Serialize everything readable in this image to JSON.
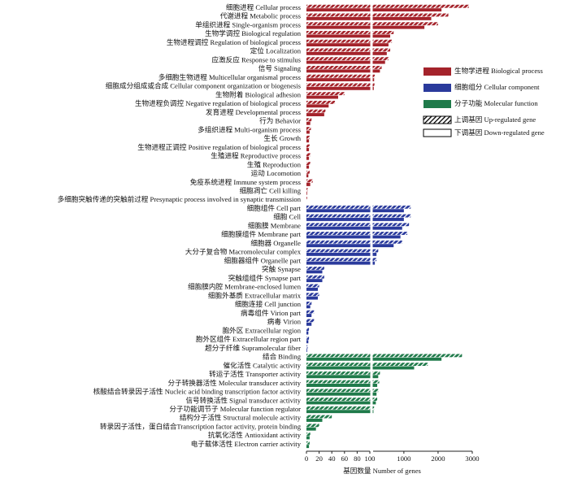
{
  "chart_data": {
    "type": "bar",
    "orientation": "horizontal",
    "xlabel": "基因数量  Number of genes",
    "xlim": [
      0,
      3000
    ],
    "x_break": 100,
    "xticks": [
      0,
      20,
      40,
      60,
      80,
      100,
      1000,
      2000,
      3000
    ],
    "patterns": [
      {
        "name": "上调基因 Up-regulated gene",
        "pattern": "hatch"
      },
      {
        "name": "下调基因 Down-regulated gene",
        "pattern": "plain"
      }
    ],
    "groups": [
      {
        "name": "生物学进程 Biological process",
        "color": "#a4232b",
        "categories": [
          "细胞进程 Cellular process",
          "代谢进程 Metabolic process",
          "单组织进程 Single-organism process",
          "生物学调控 Biological regulation",
          "生物进程调控 Regulation of biological process",
          "定位 Localization",
          "应激反应 Response to stimulus",
          "信号 Signaling",
          "多细胞生物进程 Multicellular organismal process",
          "细胞成分组成或合成  Cellular component organization or biogenesis",
          "生物附着 Biological adhesion",
          "生物进程负调控 Negative regulation of biological process",
          "发育进程 Developmental process",
          "行为 Behavior",
          "多组织进程 Multi-organism process",
          "生长 Growth",
          "生物进程正调控 Positive regulation of biological process",
          "生殖进程 Reproductive process",
          "生殖 Reproduction",
          "运动 Locomotion",
          "免疫系统进程 Immune system process",
          "细胞凋亡 Cell killing",
          "多细胞突触传递的突触前过程 Presynaptic process involved in synaptic transmission"
        ],
        "up": [
          2900,
          2300,
          2000,
          700,
          650,
          600,
          550,
          350,
          150,
          140,
          60,
          45,
          30,
          8,
          7,
          5,
          5,
          6,
          6,
          5,
          10,
          2,
          1
        ],
        "down": [
          2100,
          1800,
          1600,
          600,
          550,
          500,
          450,
          300,
          130,
          120,
          50,
          35,
          28,
          6,
          5,
          4,
          4,
          4,
          4,
          3,
          6,
          1,
          0
        ]
      },
      {
        "name": "细胞组分 Cellular component",
        "color": "#2a3a9c",
        "categories": [
          "细胞组件 Cell part",
          "细胞 Cell",
          "细胞膜 Membrane",
          "细胞膜组件 Membrane part",
          "细胞器 Organelle",
          "大分子复合物 Macromolecular complex",
          "细胞器组件 Organelle part",
          "突触 Synapse",
          "突触组组件 Synapse part",
          "细胞膜内腔 Membrane-enclosed lumen",
          "细胞外基质 Extracellular matrix",
          "细胞连接 Cell junction",
          "病毒组件 Virion part",
          "病毒 Virion",
          "胞外区 Extracellular region",
          "胞外区组件  Extracellular region part",
          "超分子纤维 Supramolecular fiber"
        ],
        "up": [
          1200,
          1200,
          1150,
          1100,
          950,
          250,
          200,
          28,
          28,
          20,
          20,
          8,
          12,
          12,
          4,
          4,
          2
        ],
        "down": [
          1000,
          1000,
          950,
          900,
          700,
          200,
          150,
          25,
          25,
          18,
          18,
          6,
          8,
          8,
          3,
          3,
          1
        ]
      },
      {
        "name": "分子功能 Molecular function",
        "color": "#1f7a4a",
        "categories": [
          "结合 Binding",
          "催化活性 Catalytic activity",
          "转运子活性 Transporter activity",
          "分子转换器活性 Molecular transducer activity",
          "核酸结合转录因子活性  Nucleic acid binding transcription factor activity",
          "信号转换活性 Signal transducer activity",
          "分子功能调节子 Molecular function regulator",
          "结构分子活性 Structural molecule activity",
          "转录因子活性，蛋白结合Transcription factor activity, protein binding",
          "抗氧化活性 Antioxidant activity",
          "电子载体活性 Electron carrier activity"
        ],
        "up": [
          2700,
          1700,
          300,
          280,
          250,
          220,
          130,
          40,
          20,
          6,
          5
        ],
        "down": [
          2100,
          1300,
          250,
          220,
          200,
          180,
          110,
          25,
          15,
          5,
          4
        ]
      }
    ]
  }
}
